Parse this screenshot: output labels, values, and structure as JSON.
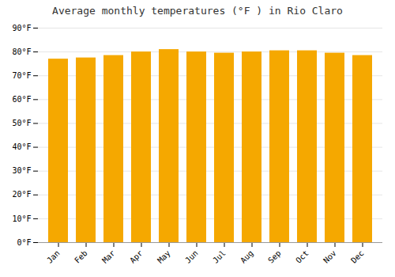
{
  "chart_data": {
    "type": "bar",
    "title": "Average monthly temperatures (°F ) in Rio Claro",
    "categories": [
      "Jan",
      "Feb",
      "Mar",
      "Apr",
      "May",
      "Jun",
      "Jul",
      "Aug",
      "Sep",
      "Oct",
      "Nov",
      "Dec"
    ],
    "values": [
      77.0,
      77.5,
      78.5,
      80.0,
      81.0,
      80.0,
      79.5,
      80.0,
      80.5,
      80.5,
      79.5,
      78.5
    ],
    "color": "#F5A800",
    "ylim": [
      0,
      90
    ],
    "yticks": [
      {
        "value": 0,
        "label": "0°F"
      },
      {
        "value": 10,
        "label": "10°F"
      },
      {
        "value": 20,
        "label": "20°F"
      },
      {
        "value": 30,
        "label": "30°F"
      },
      {
        "value": 40,
        "label": "40°F"
      },
      {
        "value": 50,
        "label": "50°F"
      },
      {
        "value": 60,
        "label": "60°F"
      },
      {
        "value": 70,
        "label": "70°F"
      },
      {
        "value": 80,
        "label": "80°F"
      },
      {
        "value": 90,
        "label": "90°F"
      }
    ],
    "grid": true
  }
}
